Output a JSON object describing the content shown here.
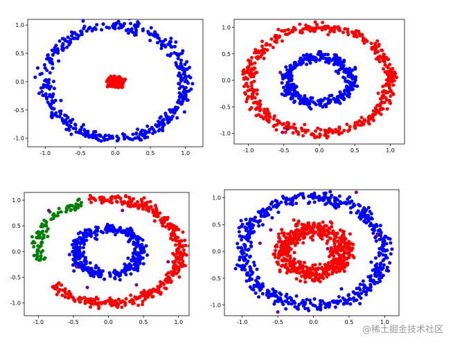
{
  "watermark": "@稀土掘金技术社区",
  "chart_data": [
    {
      "type": "scatter",
      "xlim": [
        -1.25,
        1.25
      ],
      "ylim": [
        -1.15,
        1.1
      ],
      "xticks": [
        "-1.0",
        "-0.5",
        "0.0",
        "0.5",
        "1.0"
      ],
      "xtick_values": [
        -1,
        -0.5,
        0,
        0.5,
        1
      ],
      "yticks": [
        "-1.0",
        "-0.5",
        "0.0",
        "0.5",
        "1.0"
      ],
      "ytick_values": [
        -1,
        -0.5,
        0,
        0.5,
        1
      ],
      "series": [
        {
          "color": "#0000ff",
          "shape": "ring",
          "radius": 1.0,
          "noise": 0.05,
          "count": 480
        },
        {
          "color": "#ff0000",
          "shape": "blob",
          "radius": 0.09,
          "noise": 0.04,
          "count": 260
        }
      ]
    },
    {
      "type": "scatter",
      "xlim": [
        -1.2,
        1.2
      ],
      "ylim": [
        -1.2,
        1.15
      ],
      "xticks": [
        "-1.0",
        "-0.5",
        "0.0",
        "0.5",
        "1.0"
      ],
      "xtick_values": [
        -1,
        -0.5,
        0,
        0.5,
        1
      ],
      "yticks": [
        "-1.0",
        "-0.5",
        "0.0",
        "0.5",
        "1.0"
      ],
      "ytick_values": [
        -1,
        -0.5,
        0,
        0.5,
        1
      ],
      "series": [
        {
          "color": "#ff0000",
          "shape": "ring",
          "radius": 1.0,
          "noise": 0.05,
          "count": 480
        },
        {
          "color": "#0000ff",
          "shape": "ring",
          "radius": 0.45,
          "noise": 0.05,
          "count": 360
        },
        {
          "color": "#800080",
          "shape": "points",
          "points": [
            [
              -0.52,
              -0.98
            ],
            [
              -0.45,
              -0.92
            ],
            [
              -0.55,
              0.15
            ]
          ]
        }
      ]
    },
    {
      "type": "scatter",
      "xlim": [
        -1.2,
        1.15
      ],
      "ylim": [
        -1.25,
        1.15
      ],
      "xticks": [
        "-1.0",
        "-0.5",
        "0.0",
        "0.5",
        "1.0"
      ],
      "xtick_values": [
        -1,
        -0.5,
        0,
        0.5,
        1
      ],
      "yticks": [
        "-1.0",
        "-0.5",
        "0.0",
        "0.5",
        "1.0"
      ],
      "ytick_values": [
        -1,
        -0.5,
        0,
        0.5,
        1
      ],
      "series": [
        {
          "color": "#ff0000",
          "shape": "arc",
          "radius": 1.02,
          "noise": 0.05,
          "count": 420,
          "arc_from": -140,
          "arc_to": 105
        },
        {
          "color": "#008000",
          "shape": "arc",
          "radius": 1.02,
          "noise": 0.05,
          "count": 90,
          "arc_from": 112,
          "arc_to": 190
        },
        {
          "color": "#0000ff",
          "shape": "ring",
          "radius": 0.45,
          "noise": 0.05,
          "count": 360
        },
        {
          "color": "#800080",
          "shape": "points",
          "points": [
            [
              -0.85,
              0.8
            ],
            [
              0.2,
              0.8
            ],
            [
              -0.3,
              -0.7
            ],
            [
              0.4,
              -0.65
            ],
            [
              0.85,
              -0.2
            ],
            [
              -0.45,
              -0.3
            ]
          ]
        }
      ]
    },
    {
      "type": "scatter",
      "xlim": [
        -1.25,
        1.2
      ],
      "ylim": [
        -1.2,
        1.15
      ],
      "xticks": [
        "-1.0",
        "-0.5",
        "0.0",
        "0.5",
        "1.0"
      ],
      "xtick_values": [
        -1,
        -0.5,
        0,
        0.5,
        1
      ],
      "yticks": [
        "-1.0",
        "-0.5",
        "0.0",
        "0.5",
        "1.0"
      ],
      "ytick_values": [
        -1,
        -0.5,
        0,
        0.5,
        1
      ],
      "series": [
        {
          "color": "#0000ff",
          "shape": "ring",
          "radius": 1.0,
          "noise": 0.06,
          "count": 560
        },
        {
          "color": "#ff0000",
          "shape": "ring",
          "radius": 0.42,
          "noise": 0.08,
          "count": 560
        },
        {
          "color": "#800080",
          "shape": "points",
          "points": [
            [
              -0.6,
              0.4
            ],
            [
              0.2,
              0.05
            ],
            [
              0.6,
              1.1
            ],
            [
              -0.5,
              -1.13
            ],
            [
              0.9,
              0.3
            ],
            [
              -0.75,
              0.15
            ]
          ]
        }
      ]
    }
  ]
}
